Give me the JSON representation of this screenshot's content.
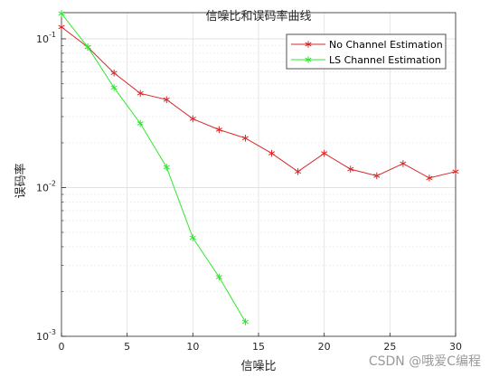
{
  "chart_data": {
    "type": "line",
    "title": "信噪比和误码率曲线",
    "xlabel": "信噪比",
    "ylabel": "误码率",
    "xlim": [
      0,
      30
    ],
    "ylim": [
      0.001,
      0.15
    ],
    "yscale": "log",
    "grid": true,
    "legend_position": "top-right",
    "x_ticks": [
      "0",
      "5",
      "10",
      "15",
      "20",
      "25",
      "30"
    ],
    "y_ticks": [
      {
        "value": 0.1,
        "base": "10",
        "exp": "-1"
      },
      {
        "value": 0.01,
        "base": "10",
        "exp": "-2"
      },
      {
        "value": 0.001,
        "base": "10",
        "exp": "-3"
      }
    ],
    "series": [
      {
        "name": "No Channel Estimation",
        "color": "#d62728",
        "marker": "asterisk",
        "x": [
          0,
          2,
          4,
          6,
          8,
          10,
          12,
          14,
          16,
          18,
          20,
          22,
          24,
          26,
          28,
          30
        ],
        "y": [
          0.12,
          0.088,
          0.059,
          0.043,
          0.039,
          0.029,
          0.0245,
          0.0215,
          0.017,
          0.0128,
          0.017,
          0.0133,
          0.012,
          0.0145,
          0.0116,
          0.0128
        ]
      },
      {
        "name": "LS Channel Estimation",
        "color": "#2ee82e",
        "marker": "asterisk",
        "x": [
          0,
          2,
          4,
          6,
          8,
          10,
          12,
          14
        ],
        "y": [
          0.148,
          0.088,
          0.047,
          0.027,
          0.0137,
          0.0046,
          0.0025,
          0.00125
        ]
      }
    ]
  },
  "watermark": "CSDN @哦爱C编程"
}
